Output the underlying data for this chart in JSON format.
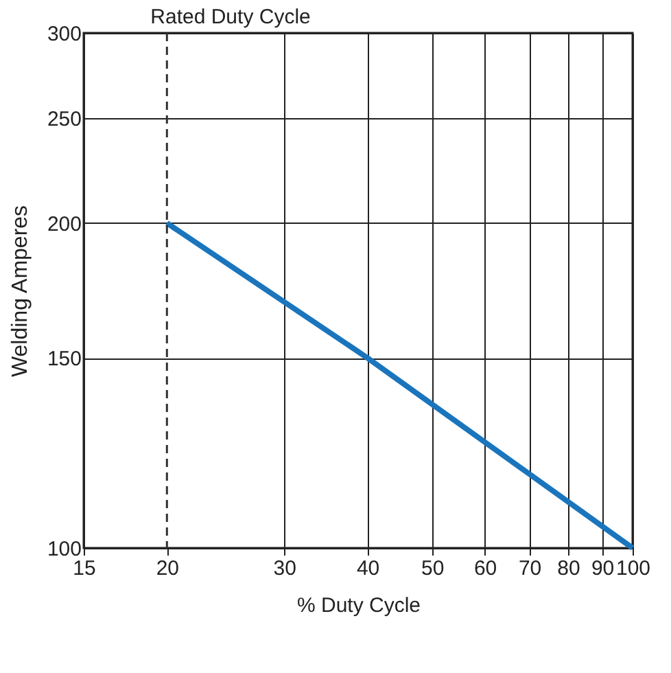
{
  "chart_data": {
    "type": "line",
    "xlabel": "% Duty Cycle",
    "ylabel": "Welding Amperes",
    "x": [
      20,
      40,
      100
    ],
    "series": [
      {
        "color": "#1a75bc",
        "values": [
          200,
          150,
          100
        ]
      }
    ],
    "log": "xy",
    "xlim": [
      15,
      100
    ],
    "ylim": [
      100,
      300
    ],
    "xticks": [
      15,
      20,
      30,
      40,
      50,
      60,
      70,
      80,
      90,
      100
    ],
    "yticks": [
      100,
      150,
      200,
      250,
      300
    ],
    "grid": true,
    "marker": "none",
    "line_style": "solid",
    "ref_lines": [
      {
        "axis": "x",
        "value": 20,
        "label": "Rated Duty Cycle",
        "line_style": "dashed",
        "color": "#333333"
      }
    ]
  }
}
